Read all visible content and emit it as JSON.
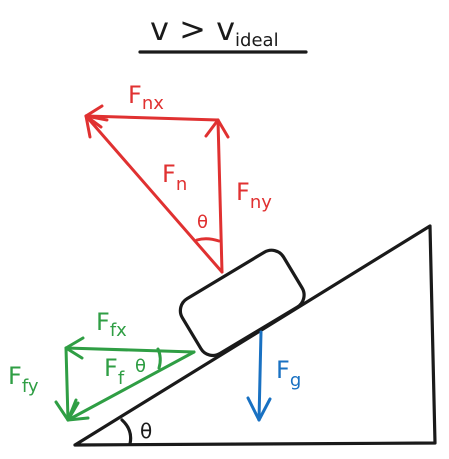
{
  "title": {
    "main": "v > v",
    "subscript": "ideal"
  },
  "labels": {
    "fnx": {
      "main": "F",
      "sub": "nx"
    },
    "fn": {
      "main": "F",
      "sub": "n"
    },
    "fny": {
      "main": "F",
      "sub": "ny"
    },
    "theta_normal": "θ",
    "ffx": {
      "main": "F",
      "sub": "fx"
    },
    "ff": {
      "main": "F",
      "sub": "f"
    },
    "ffy": {
      "main": "F",
      "sub": "fy"
    },
    "theta_friction": "θ",
    "fg": {
      "main": "F",
      "sub": "g"
    },
    "theta_incline": "θ"
  },
  "colors": {
    "ink": "#1a1a1a",
    "normal": "#e03131",
    "friction": "#2f9e44",
    "gravity": "#1971c2"
  }
}
